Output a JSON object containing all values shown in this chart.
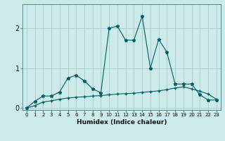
{
  "xlabel": "Humidex (Indice chaleur)",
  "background_color": "#cceaea",
  "line_color": "#006060",
  "grid_color": "#aacccc",
  "xlim": [
    -0.5,
    23.5
  ],
  "ylim": [
    -0.05,
    2.6
  ],
  "yticks": [
    0,
    1,
    2
  ],
  "xticks": [
    0,
    1,
    2,
    3,
    4,
    5,
    6,
    7,
    8,
    9,
    10,
    11,
    12,
    13,
    14,
    15,
    16,
    17,
    18,
    19,
    20,
    21,
    22,
    23
  ],
  "line1_x": [
    0,
    1,
    2,
    3,
    4,
    5,
    6,
    7,
    8,
    9,
    10,
    11,
    12,
    13,
    14,
    15,
    16,
    17,
    18,
    19,
    20,
    21,
    22,
    23
  ],
  "line1_y": [
    0.0,
    0.17,
    0.3,
    0.3,
    0.4,
    0.75,
    0.82,
    0.68,
    0.48,
    0.38,
    2.0,
    2.05,
    1.7,
    1.7,
    2.3,
    1.0,
    1.72,
    1.4,
    0.6,
    0.6,
    0.6,
    0.33,
    0.2,
    0.2
  ],
  "line2_x": [
    0,
    1,
    2,
    3,
    4,
    5,
    6,
    7,
    8,
    9,
    10,
    11,
    12,
    13,
    14,
    15,
    16,
    17,
    18,
    19,
    20,
    21,
    22,
    23
  ],
  "line2_y": [
    0.0,
    0.06,
    0.15,
    0.18,
    0.22,
    0.25,
    0.27,
    0.28,
    0.3,
    0.31,
    0.33,
    0.35,
    0.36,
    0.37,
    0.39,
    0.41,
    0.43,
    0.46,
    0.5,
    0.53,
    0.48,
    0.42,
    0.35,
    0.22
  ]
}
